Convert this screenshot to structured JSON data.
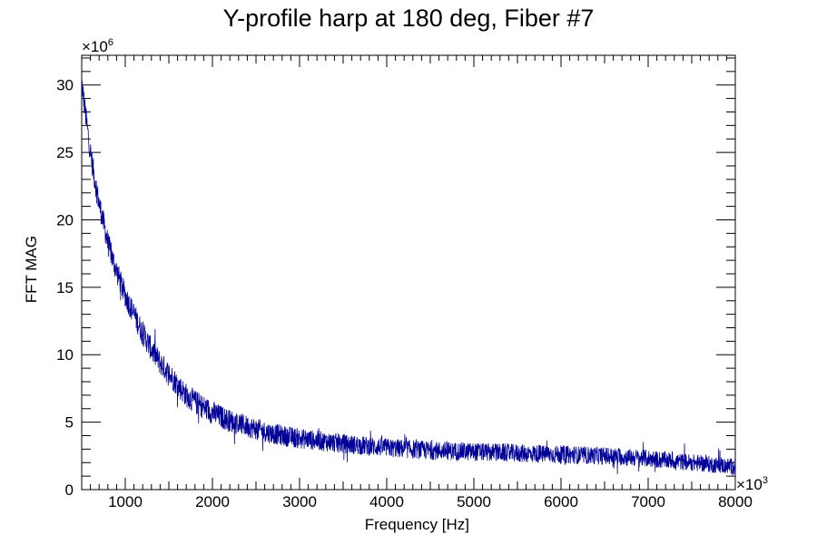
{
  "chart_data": {
    "type": "line",
    "title": "Y-profile harp at 180 deg, Fiber #7",
    "xlabel": "Frequency [Hz]",
    "ylabel": "FFT MAG",
    "x_multiplier_base": "×10",
    "x_multiplier_exp": "3",
    "y_multiplier_base": "×10",
    "y_multiplier_exp": "6",
    "xlim": [
      500,
      8000
    ],
    "ylim": [
      0,
      32.2
    ],
    "x_ticks": [
      1000,
      2000,
      3000,
      4000,
      5000,
      6000,
      7000,
      8000
    ],
    "x_tick_labels": [
      "1000",
      "2000",
      "3000",
      "4000",
      "5000",
      "6000",
      "7000",
      "8000"
    ],
    "y_ticks": [
      0,
      5,
      10,
      15,
      20,
      25,
      30
    ],
    "y_tick_labels": [
      "0",
      "5",
      "10",
      "15",
      "20",
      "25",
      "30"
    ],
    "grid": false,
    "line_color": "#000099",
    "series": [
      {
        "x": [
          500,
          550,
          600,
          650,
          700,
          750,
          800,
          850,
          900,
          950,
          1000,
          1100,
          1200,
          1300,
          1400,
          1500,
          1600,
          1700,
          1800,
          1900,
          2000,
          2200,
          2400,
          2600,
          2800,
          3000,
          3500,
          4000,
          4500,
          5000,
          5500,
          6000,
          6500,
          7000,
          7500,
          8000
        ],
        "values": [
          30.2,
          27.5,
          25.0,
          23.0,
          21.2,
          19.8,
          18.3,
          17.2,
          16.2,
          15.3,
          14.4,
          13.0,
          11.6,
          10.4,
          9.4,
          8.6,
          7.8,
          7.0,
          6.5,
          6.1,
          5.7,
          5.1,
          4.7,
          4.3,
          4.0,
          3.8,
          3.4,
          3.1,
          2.9,
          2.8,
          2.7,
          2.6,
          2.5,
          2.3,
          2.0,
          1.7
        ],
        "noise_amplitude": 0.9
      }
    ]
  }
}
